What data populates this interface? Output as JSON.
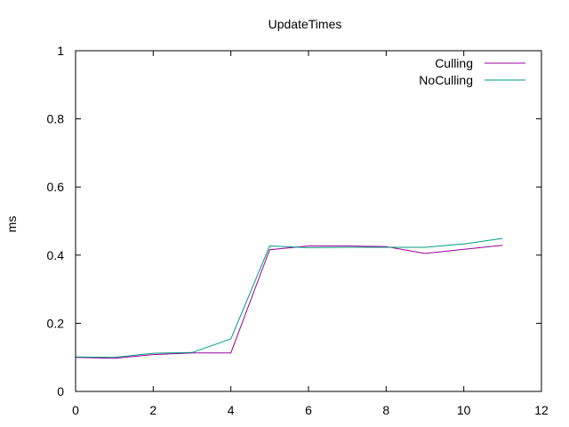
{
  "chart_data": {
    "type": "line",
    "title": "UpdateTimes",
    "xlabel": "",
    "ylabel": "ms",
    "xlim": [
      0,
      12
    ],
    "ylim": [
      0,
      1
    ],
    "xticks": [
      0,
      2,
      4,
      6,
      8,
      10,
      12
    ],
    "yticks": [
      0,
      0.2,
      0.4,
      0.6,
      0.8,
      1
    ],
    "xtick_labels": [
      "0",
      "2",
      "4",
      "6",
      "8",
      "10",
      "12"
    ],
    "ytick_labels": [
      "0",
      "0.2",
      "0.4",
      "0.6",
      "0.8",
      "1"
    ],
    "legend_position": "top-right",
    "grid": false,
    "x": [
      0,
      1,
      2,
      3,
      4,
      5,
      6,
      7,
      8,
      9,
      10,
      11
    ],
    "series": [
      {
        "name": "Culling",
        "color": "#990099",
        "values": [
          0.1,
          0.097,
          0.108,
          0.113,
          0.113,
          0.416,
          0.427,
          0.427,
          0.425,
          0.405,
          0.417,
          0.429
        ]
      },
      {
        "name": "NoCulling",
        "color": "#009980",
        "values": [
          0.101,
          0.1,
          0.112,
          0.114,
          0.154,
          0.427,
          0.422,
          0.423,
          0.423,
          0.423,
          0.433,
          0.449
        ]
      }
    ]
  }
}
